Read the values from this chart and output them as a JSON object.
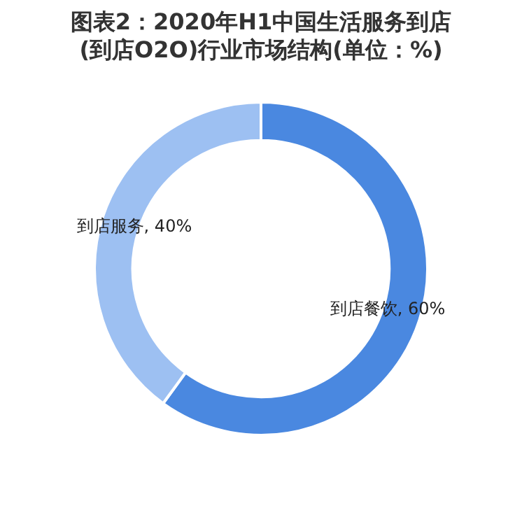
{
  "chart_data": {
    "type": "donut",
    "title": "图表2：2020年H1中国生活服务到店(到店O2O)行业市场结构(单位：%)",
    "categories": [
      "到店餐饮",
      "到店服务"
    ],
    "values": [
      60,
      40
    ],
    "colors": [
      "#4a88e0",
      "#9dc0f2"
    ],
    "value_labels": [
      "60%",
      "40%"
    ],
    "legend": false
  }
}
